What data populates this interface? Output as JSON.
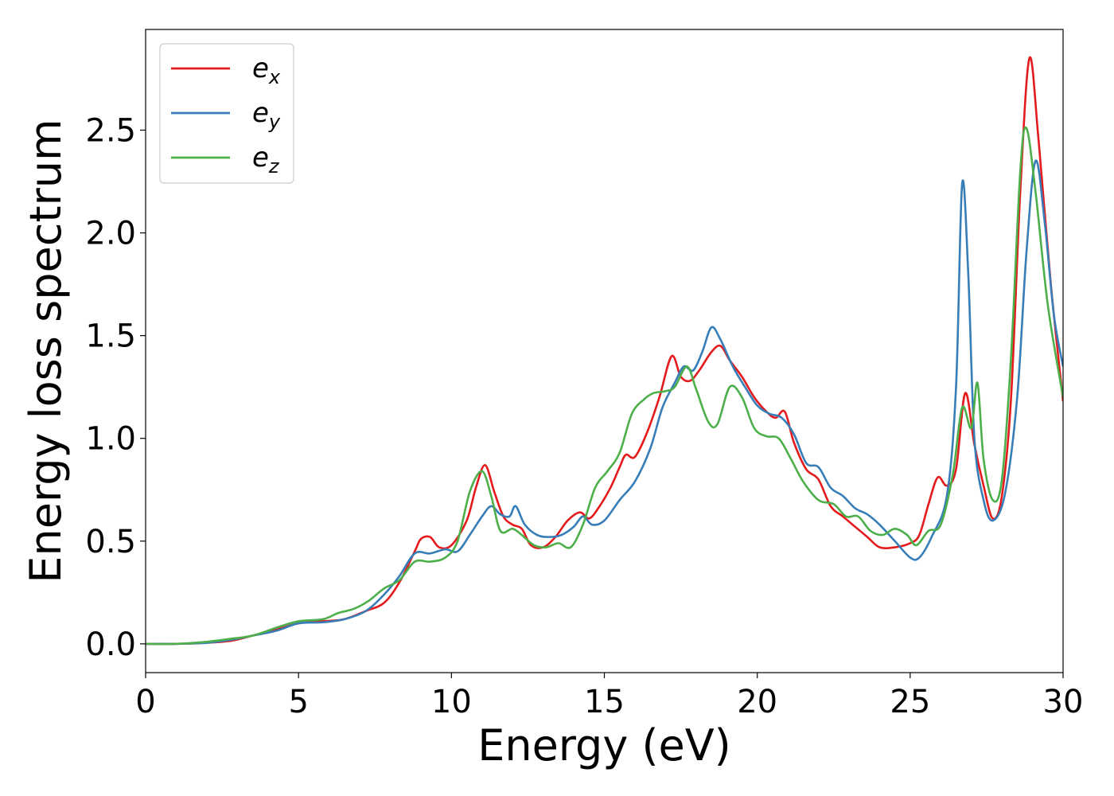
{
  "chart_data": {
    "type": "line",
    "title": "",
    "xlabel": "Energy (eV)",
    "ylabel": "Energy loss spectrum",
    "xlim": [
      0,
      30
    ],
    "ylim": [
      -0.14,
      2.99
    ],
    "xticks": [
      0,
      5,
      10,
      15,
      20,
      25,
      30
    ],
    "xtick_labels": [
      "0",
      "5",
      "10",
      "15",
      "20",
      "25",
      "30"
    ],
    "yticks": [
      0.0,
      0.5,
      1.0,
      1.5,
      2.0,
      2.5
    ],
    "ytick_labels": [
      "0.0",
      "0.5",
      "1.0",
      "1.5",
      "2.0",
      "2.5"
    ],
    "grid": false,
    "legend_position": "top-left",
    "series": [
      {
        "name": "e",
        "sub": "x",
        "color": "#e41a1c",
        "points": [
          [
            0,
            0
          ],
          [
            1,
            0
          ],
          [
            2,
            0.005
          ],
          [
            2.8,
            0.015
          ],
          [
            3.5,
            0.04
          ],
          [
            4.3,
            0.07
          ],
          [
            5,
            0.1
          ],
          [
            5.8,
            0.11
          ],
          [
            6.5,
            0.12
          ],
          [
            7.2,
            0.16
          ],
          [
            7.8,
            0.2
          ],
          [
            8.3,
            0.3
          ],
          [
            8.8,
            0.45
          ],
          [
            9,
            0.51
          ],
          [
            9.3,
            0.52
          ],
          [
            9.6,
            0.47
          ],
          [
            10,
            0.48
          ],
          [
            10.5,
            0.6
          ],
          [
            10.8,
            0.76
          ],
          [
            11.1,
            0.87
          ],
          [
            11.4,
            0.74
          ],
          [
            11.7,
            0.62
          ],
          [
            12,
            0.58
          ],
          [
            12.3,
            0.56
          ],
          [
            12.6,
            0.48
          ],
          [
            13,
            0.47
          ],
          [
            13.4,
            0.52
          ],
          [
            13.8,
            0.6
          ],
          [
            14.2,
            0.64
          ],
          [
            14.5,
            0.61
          ],
          [
            14.8,
            0.66
          ],
          [
            15.2,
            0.76
          ],
          [
            15.5,
            0.86
          ],
          [
            15.7,
            0.92
          ],
          [
            16,
            0.91
          ],
          [
            16.4,
            1.03
          ],
          [
            16.8,
            1.2
          ],
          [
            17.2,
            1.4
          ],
          [
            17.5,
            1.3
          ],
          [
            17.8,
            1.28
          ],
          [
            18.1,
            1.33
          ],
          [
            18.5,
            1.42
          ],
          [
            18.8,
            1.45
          ],
          [
            19.1,
            1.38
          ],
          [
            19.5,
            1.3
          ],
          [
            19.9,
            1.2
          ],
          [
            20.3,
            1.13
          ],
          [
            20.6,
            1.1
          ],
          [
            20.9,
            1.13
          ],
          [
            21.2,
            0.98
          ],
          [
            21.6,
            0.85
          ],
          [
            22,
            0.8
          ],
          [
            22.4,
            0.67
          ],
          [
            22.8,
            0.62
          ],
          [
            23.2,
            0.57
          ],
          [
            23.6,
            0.52
          ],
          [
            24,
            0.47
          ],
          [
            24.5,
            0.47
          ],
          [
            25,
            0.49
          ],
          [
            25.3,
            0.53
          ],
          [
            25.6,
            0.68
          ],
          [
            25.9,
            0.81
          ],
          [
            26.2,
            0.77
          ],
          [
            26.5,
            0.85
          ],
          [
            26.8,
            1.22
          ],
          [
            27.1,
            0.97
          ],
          [
            27.4,
            0.77
          ],
          [
            27.7,
            0.61
          ],
          [
            28,
            0.72
          ],
          [
            28.3,
            1.2
          ],
          [
            28.6,
            2.2
          ],
          [
            28.9,
            2.85
          ],
          [
            29.2,
            2.45
          ],
          [
            29.6,
            1.75
          ],
          [
            30,
            1.18
          ]
        ]
      },
      {
        "name": "e",
        "sub": "y",
        "color": "#377eb8",
        "points": [
          [
            0,
            0
          ],
          [
            1,
            0
          ],
          [
            2,
            0.005
          ],
          [
            2.8,
            0.02
          ],
          [
            3.5,
            0.04
          ],
          [
            4.3,
            0.065
          ],
          [
            5,
            0.1
          ],
          [
            5.8,
            0.105
          ],
          [
            6.5,
            0.12
          ],
          [
            7.2,
            0.16
          ],
          [
            7.8,
            0.24
          ],
          [
            8.3,
            0.33
          ],
          [
            8.8,
            0.44
          ],
          [
            9.3,
            0.44
          ],
          [
            9.8,
            0.46
          ],
          [
            10.2,
            0.45
          ],
          [
            10.6,
            0.53
          ],
          [
            11,
            0.62
          ],
          [
            11.3,
            0.67
          ],
          [
            11.6,
            0.63
          ],
          [
            11.9,
            0.62
          ],
          [
            12.1,
            0.67
          ],
          [
            12.4,
            0.58
          ],
          [
            12.8,
            0.53
          ],
          [
            13.2,
            0.52
          ],
          [
            13.6,
            0.53
          ],
          [
            14,
            0.57
          ],
          [
            14.3,
            0.62
          ],
          [
            14.6,
            0.58
          ],
          [
            15,
            0.6
          ],
          [
            15.5,
            0.7
          ],
          [
            16,
            0.79
          ],
          [
            16.5,
            0.95
          ],
          [
            16.9,
            1.15
          ],
          [
            17.3,
            1.27
          ],
          [
            17.6,
            1.35
          ],
          [
            17.9,
            1.33
          ],
          [
            18.2,
            1.42
          ],
          [
            18.5,
            1.54
          ],
          [
            18.8,
            1.48
          ],
          [
            19.2,
            1.35
          ],
          [
            19.6,
            1.25
          ],
          [
            20,
            1.16
          ],
          [
            20.4,
            1.12
          ],
          [
            20.8,
            1.1
          ],
          [
            21.2,
            1.02
          ],
          [
            21.6,
            0.88
          ],
          [
            22,
            0.86
          ],
          [
            22.4,
            0.76
          ],
          [
            22.8,
            0.72
          ],
          [
            23.2,
            0.66
          ],
          [
            23.6,
            0.63
          ],
          [
            24,
            0.58
          ],
          [
            24.5,
            0.5
          ],
          [
            25,
            0.42
          ],
          [
            25.3,
            0.42
          ],
          [
            25.7,
            0.52
          ],
          [
            26.2,
            0.72
          ],
          [
            26.5,
            1.25
          ],
          [
            26.7,
            2.24
          ],
          [
            26.9,
            1.8
          ],
          [
            27.1,
            1.0
          ],
          [
            27.4,
            0.7
          ],
          [
            27.7,
            0.6
          ],
          [
            28.1,
            0.73
          ],
          [
            28.5,
            1.2
          ],
          [
            28.8,
            1.9
          ],
          [
            29.1,
            2.35
          ],
          [
            29.4,
            2.05
          ],
          [
            29.7,
            1.6
          ],
          [
            30,
            1.35
          ]
        ]
      },
      {
        "name": "e",
        "sub": "z",
        "color": "#4daf4a",
        "points": [
          [
            0,
            0
          ],
          [
            1,
            0
          ],
          [
            2,
            0.01
          ],
          [
            2.8,
            0.025
          ],
          [
            3.5,
            0.04
          ],
          [
            4.3,
            0.08
          ],
          [
            5,
            0.11
          ],
          [
            5.8,
            0.12
          ],
          [
            6.3,
            0.15
          ],
          [
            6.8,
            0.17
          ],
          [
            7.3,
            0.21
          ],
          [
            7.8,
            0.27
          ],
          [
            8.3,
            0.31
          ],
          [
            8.8,
            0.4
          ],
          [
            9.3,
            0.4
          ],
          [
            9.8,
            0.42
          ],
          [
            10.2,
            0.5
          ],
          [
            10.6,
            0.74
          ],
          [
            11,
            0.84
          ],
          [
            11.3,
            0.72
          ],
          [
            11.6,
            0.55
          ],
          [
            12,
            0.56
          ],
          [
            12.3,
            0.53
          ],
          [
            12.7,
            0.48
          ],
          [
            13.1,
            0.47
          ],
          [
            13.5,
            0.49
          ],
          [
            13.9,
            0.47
          ],
          [
            14.3,
            0.58
          ],
          [
            14.7,
            0.76
          ],
          [
            15.1,
            0.84
          ],
          [
            15.5,
            0.93
          ],
          [
            15.9,
            1.12
          ],
          [
            16.3,
            1.19
          ],
          [
            16.6,
            1.22
          ],
          [
            17,
            1.23
          ],
          [
            17.3,
            1.25
          ],
          [
            17.7,
            1.35
          ],
          [
            18,
            1.24
          ],
          [
            18.4,
            1.08
          ],
          [
            18.7,
            1.07
          ],
          [
            19.1,
            1.25
          ],
          [
            19.5,
            1.2
          ],
          [
            19.9,
            1.05
          ],
          [
            20.3,
            1.01
          ],
          [
            20.7,
            1.0
          ],
          [
            21.1,
            0.9
          ],
          [
            21.5,
            0.79
          ],
          [
            22,
            0.7
          ],
          [
            22.5,
            0.68
          ],
          [
            22.9,
            0.62
          ],
          [
            23.3,
            0.62
          ],
          [
            23.7,
            0.55
          ],
          [
            24.1,
            0.53
          ],
          [
            24.5,
            0.56
          ],
          [
            24.9,
            0.53
          ],
          [
            25.2,
            0.48
          ],
          [
            25.6,
            0.55
          ],
          [
            26,
            0.58
          ],
          [
            26.4,
            0.83
          ],
          [
            26.7,
            1.15
          ],
          [
            27,
            1.05
          ],
          [
            27.2,
            1.27
          ],
          [
            27.4,
            0.9
          ],
          [
            27.7,
            0.7
          ],
          [
            28,
            0.8
          ],
          [
            28.3,
            1.4
          ],
          [
            28.6,
            2.3
          ],
          [
            28.8,
            2.51
          ],
          [
            29.1,
            2.2
          ],
          [
            29.5,
            1.65
          ],
          [
            30,
            1.2
          ]
        ]
      }
    ]
  }
}
